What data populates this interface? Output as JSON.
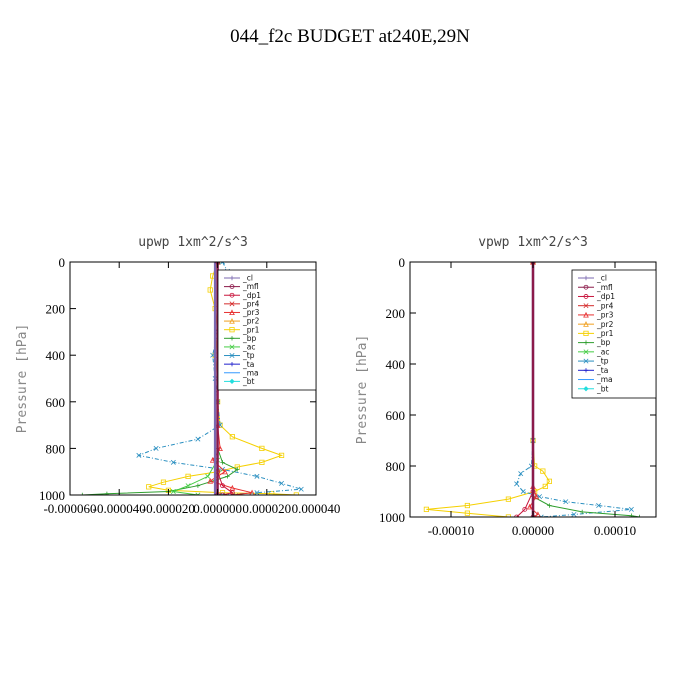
{
  "title": "044_f2c  BUDGET at240E,29N",
  "legend_entries": [
    {
      "name": "_cl",
      "color": "#7b68b0",
      "marker": "+"
    },
    {
      "name": "_mfl",
      "color": "#8b1a4a",
      "marker": "circle"
    },
    {
      "name": "_dp1",
      "color": "#c8143c",
      "marker": "circle"
    },
    {
      "name": "_pr4",
      "color": "#d42a2a",
      "marker": "x"
    },
    {
      "name": "_pr3",
      "color": "#e83030",
      "marker": "tri"
    },
    {
      "name": "_pr2",
      "color": "#f0a020",
      "marker": "tri"
    },
    {
      "name": "_pr1",
      "color": "#f5d000",
      "marker": "square"
    },
    {
      "name": "_bp",
      "color": "#2e9e2e",
      "marker": "+"
    },
    {
      "name": "_ac",
      "color": "#44cc44",
      "marker": "x"
    },
    {
      "name": "_tp",
      "color": "#2a8fc0",
      "marker": "x"
    },
    {
      "name": "_ta",
      "color": "#2222cc",
      "marker": "+"
    },
    {
      "name": "_ma",
      "color": "#3399ff",
      "marker": "none"
    },
    {
      "name": "_bt",
      "color": "#22dddd",
      "marker": "diamond"
    }
  ],
  "chart_data": [
    {
      "type": "line",
      "title": "upwp   1xm^2/s^3",
      "ylabel": "Pressure [hPa]",
      "xlabel": "",
      "xlim": [
        -6e-05,
        4e-05
      ],
      "ylim": [
        1000,
        0
      ],
      "x_ticks": [
        -6e-05,
        -4e-05,
        -2e-05,
        0.0,
        2e-05,
        4e-05
      ],
      "x_tick_labels": [
        "-0.000060",
        "-0.000040",
        "-0.000020",
        "0.000000",
        "0.000020",
        "0.000040"
      ],
      "y_ticks": [
        0,
        200,
        400,
        600,
        800,
        1000
      ],
      "y_tick_labels": [
        "0",
        "200",
        "400",
        "600",
        "800",
        "1000"
      ],
      "grid": false,
      "legend_position": "top-right",
      "series": [
        {
          "name": "_pr1",
          "points": [
            [
              0.0,
              0
            ],
            [
              -2e-06,
              60
            ],
            [
              -3e-06,
              120
            ],
            [
              -1e-06,
              200
            ],
            [
              0.0,
              300
            ],
            [
              -1e-06,
              400
            ],
            [
              0.0,
              500
            ],
            [
              0.0,
              600
            ],
            [
              1e-06,
              700
            ],
            [
              6e-06,
              750
            ],
            [
              1.8e-05,
              800
            ],
            [
              2.6e-05,
              830
            ],
            [
              1.8e-05,
              860
            ],
            [
              8e-06,
              880
            ],
            [
              0.0,
              900
            ],
            [
              -1.2e-05,
              920
            ],
            [
              -2.2e-05,
              945
            ],
            [
              -2.8e-05,
              965
            ],
            [
              -2e-05,
              980
            ],
            [
              2e-06,
              990
            ],
            [
              2.2e-05,
              995
            ],
            [
              3.2e-05,
              1000
            ]
          ]
        },
        {
          "name": "_tp",
          "points": [
            [
              2e-06,
              0
            ],
            [
              4e-06,
              40
            ],
            [
              3e-06,
              80
            ],
            [
              1e-06,
              200
            ],
            [
              0.0,
              300
            ],
            [
              -2e-06,
              400
            ],
            [
              -1e-06,
              500
            ],
            [
              0.0,
              600
            ],
            [
              1e-06,
              700
            ],
            [
              -8e-06,
              760
            ],
            [
              -2.5e-05,
              800
            ],
            [
              -3.2e-05,
              830
            ],
            [
              -1.8e-05,
              860
            ],
            [
              2e-06,
              890
            ],
            [
              1.6e-05,
              920
            ],
            [
              2.6e-05,
              950
            ],
            [
              3.4e-05,
              975
            ],
            [
              1.6e-05,
              990
            ],
            [
              2e-06,
              1000
            ]
          ]
        },
        {
          "name": "_bp",
          "points": [
            [
              0.0,
              0
            ],
            [
              0.0,
              600
            ],
            [
              0.0,
              800
            ],
            [
              2e-06,
              860
            ],
            [
              8e-06,
              890
            ],
            [
              4e-06,
              920
            ],
            [
              -8e-06,
              960
            ],
            [
              -2e-05,
              985
            ],
            [
              -4.5e-05,
              995
            ],
            [
              -5.5e-05,
              1000
            ]
          ]
        },
        {
          "name": "_pr3",
          "points": [
            [
              0.0,
              0
            ],
            [
              0.0,
              700
            ],
            [
              1e-06,
              800
            ],
            [
              -2e-06,
              850
            ],
            [
              3e-06,
              900
            ],
            [
              -3e-06,
              940
            ],
            [
              6e-06,
              970
            ],
            [
              1.4e-05,
              990
            ],
            [
              6e-06,
              1000
            ]
          ]
        },
        {
          "name": "_ac",
          "points": [
            [
              0.0,
              0
            ],
            [
              0.0,
              850
            ],
            [
              -4e-06,
              920
            ],
            [
              -1.2e-05,
              960
            ],
            [
              -1.8e-05,
              985
            ],
            [
              -8e-06,
              1000
            ]
          ]
        },
        {
          "name": "_dp1",
          "points": [
            [
              0.0,
              0
            ],
            [
              0.0,
              900
            ],
            [
              2e-06,
              960
            ],
            [
              6e-06,
              990
            ],
            [
              2e-06,
              1000
            ]
          ]
        },
        {
          "name": "_cl",
          "points": [
            [
              -1e-06,
              0
            ],
            [
              -1e-06,
              1000
            ]
          ]
        },
        {
          "name": "_mfl",
          "points": [
            [
              0.0,
              0
            ],
            [
              0.0,
              1000
            ]
          ]
        }
      ]
    },
    {
      "type": "line",
      "title": "vpwp   1xm^2/s^3",
      "ylabel": "Pressure [hPa]",
      "xlabel": "",
      "xlim": [
        -0.00015,
        0.00015
      ],
      "ylim": [
        1000,
        0
      ],
      "x_ticks": [
        -0.0001,
        0.0,
        0.0001
      ],
      "x_tick_labels": [
        "-0.00010",
        "0.00000",
        "0.00010"
      ],
      "y_ticks": [
        0,
        200,
        400,
        600,
        800,
        1000
      ],
      "y_tick_labels": [
        "0",
        "200",
        "400",
        "600",
        "800",
        "1000"
      ],
      "grid": false,
      "legend_position": "top-right",
      "series": [
        {
          "name": "_pr1",
          "points": [
            [
              0.0,
              0
            ],
            [
              0.0,
              700
            ],
            [
              2e-06,
              800
            ],
            [
              1.2e-05,
              820
            ],
            [
              2e-05,
              860
            ],
            [
              1.5e-05,
              880
            ],
            [
              2e-06,
              900
            ],
            [
              -3e-05,
              930
            ],
            [
              -8e-05,
              955
            ],
            [
              -0.00013,
              970
            ],
            [
              -8e-05,
              985
            ],
            [
              -3e-05,
              1000
            ]
          ]
        },
        {
          "name": "_tp",
          "points": [
            [
              0.0,
              0
            ],
            [
              0.0,
              700
            ],
            [
              -2e-06,
              800
            ],
            [
              -1.5e-05,
              830
            ],
            [
              -2e-05,
              870
            ],
            [
              -1.2e-05,
              900
            ],
            [
              8e-06,
              920
            ],
            [
              4e-05,
              940
            ],
            [
              8e-05,
              955
            ],
            [
              0.00012,
              970
            ],
            [
              5e-05,
              990
            ],
            [
              1e-05,
              1000
            ]
          ]
        },
        {
          "name": "_bp",
          "points": [
            [
              0.0,
              0
            ],
            [
              0.0,
              920
            ],
            [
              2e-05,
              955
            ],
            [
              6e-05,
              980
            ],
            [
              0.00012,
              995
            ],
            [
              0.00013,
              1000
            ]
          ]
        },
        {
          "name": "_pr3",
          "points": [
            [
              0.0,
              0
            ],
            [
              0.0,
              880
            ],
            [
              4e-06,
              920
            ],
            [
              -4e-06,
              960
            ],
            [
              6e-06,
              990
            ],
            [
              0.0,
              1000
            ]
          ]
        },
        {
          "name": "_dp1",
          "points": [
            [
              0.0,
              0
            ],
            [
              0.0,
              900
            ],
            [
              -1e-05,
              970
            ],
            [
              -2e-05,
              1000
            ]
          ]
        },
        {
          "name": "_cl",
          "points": [
            [
              0.0,
              0
            ],
            [
              0.0,
              1000
            ]
          ]
        },
        {
          "name": "_mfl",
          "points": [
            [
              0.0,
              0
            ],
            [
              0.0,
              1000
            ]
          ]
        }
      ]
    }
  ]
}
